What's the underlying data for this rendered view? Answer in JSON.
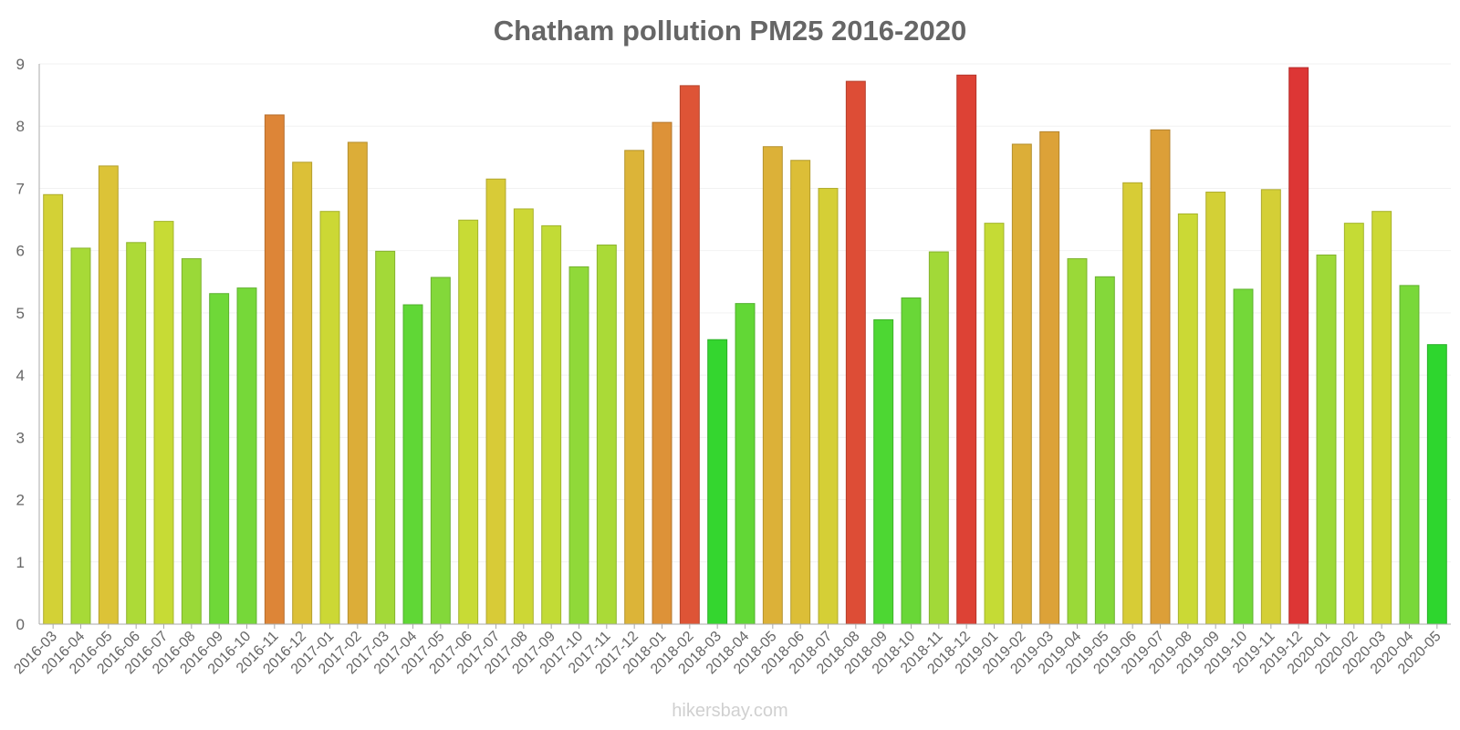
{
  "chart_data": {
    "type": "bar",
    "title": "Chatham pollution PM25 2016-2020",
    "xlabel": "",
    "ylabel": "",
    "ylim": [
      0,
      9
    ],
    "y_ticks": [
      "0",
      "1",
      "2",
      "3",
      "4",
      "5",
      "6",
      "7",
      "8",
      "9"
    ],
    "grid": true,
    "categories": [
      "2016-03",
      "2016-04",
      "2016-05",
      "2016-06",
      "2016-07",
      "2016-08",
      "2016-09",
      "2016-10",
      "2016-11",
      "2016-12",
      "2017-01",
      "2017-02",
      "2017-03",
      "2017-04",
      "2017-05",
      "2017-06",
      "2017-07",
      "2017-08",
      "2017-09",
      "2017-10",
      "2017-11",
      "2017-12",
      "2018-01",
      "2018-02",
      "2018-03",
      "2018-04",
      "2018-05",
      "2018-06",
      "2018-07",
      "2018-08",
      "2018-09",
      "2018-10",
      "2018-11",
      "2018-12",
      "2019-01",
      "2019-02",
      "2019-03",
      "2019-04",
      "2019-05",
      "2019-06",
      "2019-07",
      "2019-08",
      "2019-09",
      "2019-10",
      "2019-11",
      "2019-12",
      "2020-01",
      "2020-02",
      "2020-03",
      "2020-04",
      "2020-05"
    ],
    "values": [
      6.9,
      6.04,
      7.36,
      6.13,
      6.47,
      5.87,
      5.31,
      5.4,
      8.18,
      7.42,
      6.63,
      7.74,
      5.99,
      5.13,
      5.57,
      6.49,
      7.15,
      6.67,
      6.4,
      5.74,
      6.09,
      7.61,
      8.06,
      8.65,
      4.57,
      5.15,
      7.67,
      7.45,
      7.0,
      8.72,
      4.89,
      5.24,
      5.98,
      8.82,
      6.44,
      7.71,
      7.91,
      5.87,
      5.58,
      7.09,
      7.94,
      6.59,
      6.94,
      5.38,
      6.98,
      8.94,
      5.93,
      6.44,
      6.63,
      5.44,
      4.49
    ],
    "color_scale": [
      {
        "value": 4.5,
        "color": "#2ed62e"
      },
      {
        "value": 5.5,
        "color": "#7ed83a"
      },
      {
        "value": 6.5,
        "color": "#c9db35"
      },
      {
        "value": 7.3,
        "color": "#dcc737"
      },
      {
        "value": 7.9,
        "color": "#dca338"
      },
      {
        "value": 8.4,
        "color": "#de6e37"
      },
      {
        "value": 8.95,
        "color": "#dd3535"
      }
    ]
  },
  "footer": {
    "watermark": "hikersbay.com"
  }
}
